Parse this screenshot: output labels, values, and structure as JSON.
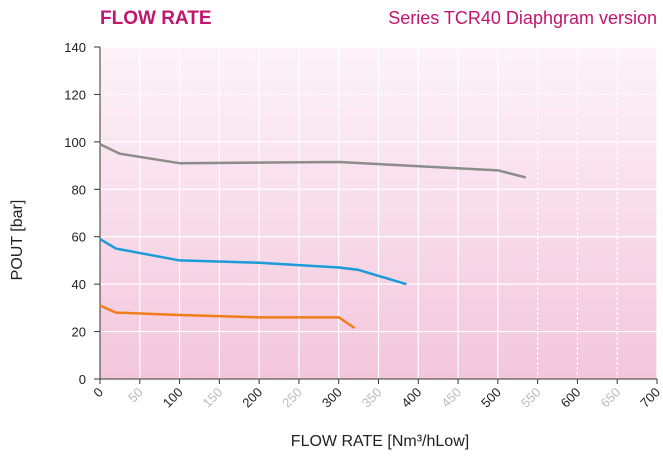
{
  "chart_data": {
    "type": "line",
    "title": "FLOW RATE",
    "subtitle": "Series TCR40 Diaphgram version",
    "x_label": "FLOW RATE [Nm³/hLow]",
    "y_label": "POUT [bar]",
    "xlim": [
      0,
      700
    ],
    "xticks": [
      0,
      50,
      100,
      150,
      200,
      250,
      300,
      350,
      400,
      450,
      500,
      550,
      600,
      650,
      700
    ],
    "ylim": [
      0,
      140
    ],
    "yticks": [
      0,
      20,
      40,
      60,
      80,
      100,
      120,
      140
    ],
    "grid": true,
    "series": [
      {
        "color": "#8c8c8c",
        "x": [
          0,
          25,
          100,
          300,
          500,
          535
        ],
        "values": [
          99,
          95,
          91,
          91.5,
          88,
          85
        ]
      },
      {
        "color": "#1b9bd8",
        "x": [
          0,
          20,
          100,
          200,
          300,
          325,
          385
        ],
        "values": [
          59,
          55,
          50,
          49,
          47,
          46,
          40
        ]
      },
      {
        "color": "#f07d1a",
        "x": [
          0,
          20,
          100,
          200,
          300,
          320
        ],
        "values": [
          31,
          28,
          27,
          26,
          26,
          21.5
        ]
      }
    ]
  }
}
